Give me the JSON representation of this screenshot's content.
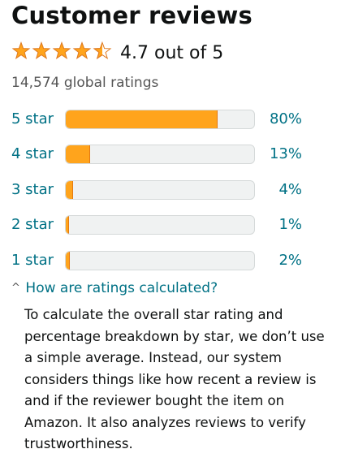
{
  "reviews": {
    "title": "Customer reviews",
    "average_rating": 4.7,
    "rating_text": "4.7 out of 5",
    "global_ratings": "14,574 global ratings",
    "star_color": "#ffa41c",
    "histogram": [
      {
        "label": "5 star",
        "percent_text": "80%",
        "fraction": 0.8
      },
      {
        "label": "4 star",
        "percent_text": "13%",
        "fraction": 0.13
      },
      {
        "label": "3 star",
        "percent_text": "4%",
        "fraction": 0.04
      },
      {
        "label": "2 star",
        "percent_text": "1%",
        "fraction": 0.01
      },
      {
        "label": "1 star",
        "percent_text": "2%",
        "fraction": 0.02
      }
    ],
    "how_calculated": {
      "expanded": true,
      "chevron_icon": "chevron-up-icon",
      "link_text": "How are ratings calculated?",
      "explanation": "To calculate the overall star rating and percentage breakdown by star, we don’t use a simple average. Instead, our system considers things like how recent a review is and if the reviewer bought the item on Amazon. It also analyzes reviews to verify trustworthiness."
    }
  }
}
